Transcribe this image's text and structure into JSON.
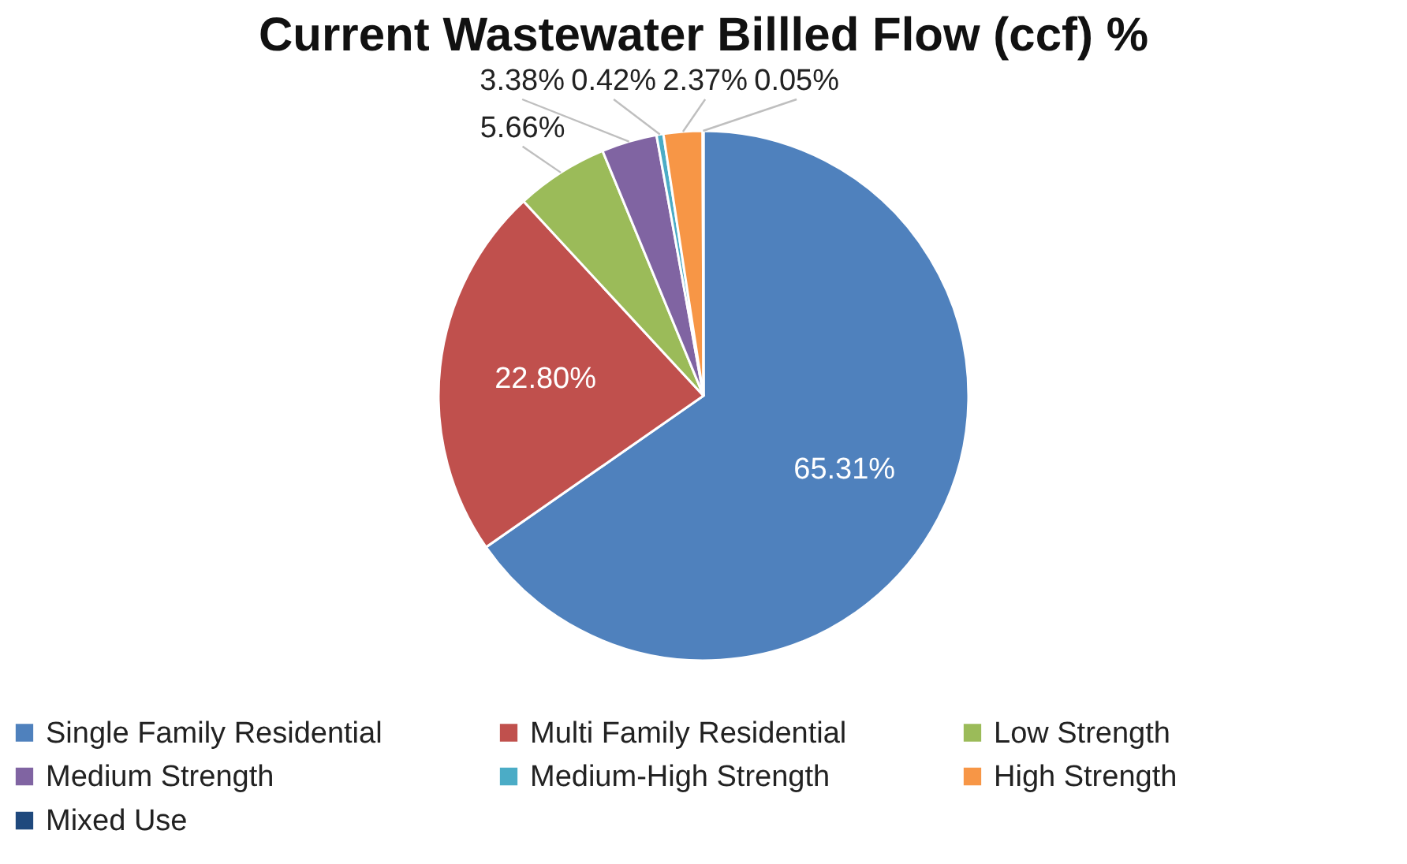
{
  "chart_data": {
    "type": "pie",
    "title": "Current Wastewater Billled Flow (ccf) %",
    "categories": [
      "Single Family Residential",
      "Multi Family Residential",
      "Low Strength",
      "Medium Strength",
      "Medium-High Strength",
      "High Strength",
      "Mixed Use"
    ],
    "values": [
      65.31,
      22.8,
      5.66,
      3.38,
      0.42,
      2.37,
      0.05
    ],
    "colors": [
      "#4f81bd",
      "#c0504d",
      "#9bbb59",
      "#8064a2",
      "#4bacc6",
      "#f79646",
      "#1f497d"
    ],
    "value_labels": [
      "65.31%",
      "22.80%",
      "5.66%",
      "3.38%",
      "0.42%",
      "2.37%",
      "0.05%"
    ],
    "legend": "bottom"
  }
}
